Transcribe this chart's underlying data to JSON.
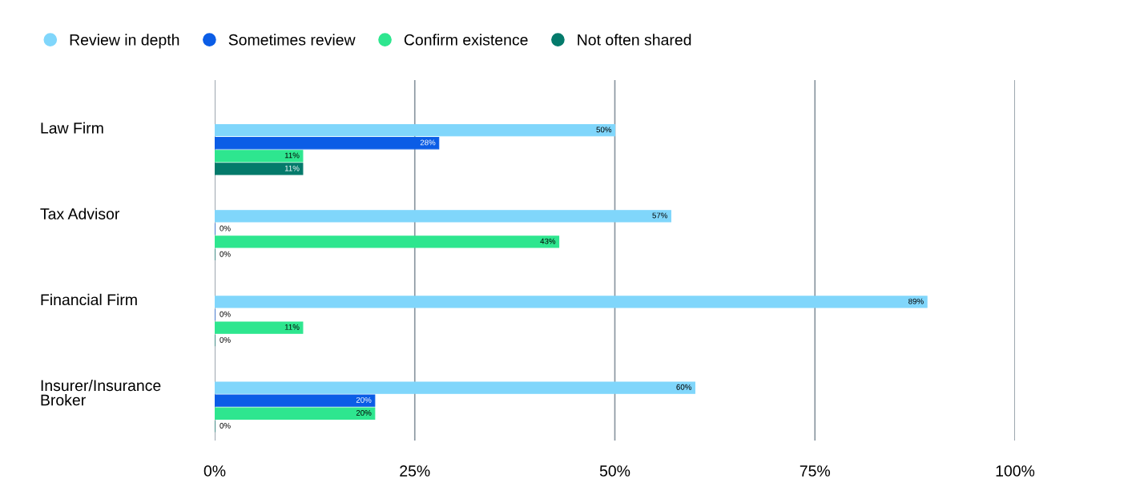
{
  "chart_data": {
    "type": "bar",
    "orientation": "horizontal",
    "categories": [
      "Law Firm",
      "Tax Advisor",
      "Financial Firm",
      "Insurer/Insurance Broker"
    ],
    "series": [
      {
        "name": "Review in depth",
        "color": "#80d6fb",
        "values": [
          50,
          57,
          89,
          60
        ],
        "value_labels": [
          "50%",
          "57%",
          "89%",
          "60%"
        ]
      },
      {
        "name": "Sometimes review",
        "color": "#0b5de6",
        "values": [
          28,
          0,
          0,
          20
        ],
        "value_labels": [
          "28%",
          "0%",
          "0%",
          "20%"
        ]
      },
      {
        "name": "Confirm existence",
        "color": "#2ee68f",
        "values": [
          11,
          43,
          11,
          20
        ],
        "value_labels": [
          "11%",
          "43%",
          "11%",
          "20%"
        ]
      },
      {
        "name": "Not often shared",
        "color": "#047a6b",
        "values": [
          11,
          0,
          0,
          0
        ],
        "value_labels": [
          "11%",
          "0%",
          "0%",
          "0%"
        ]
      }
    ],
    "xlim": [
      0,
      100
    ],
    "xticks": [
      {
        "value": 0,
        "label": "0%"
      },
      {
        "value": 25,
        "label": "25%"
      },
      {
        "value": 50,
        "label": "50%"
      },
      {
        "value": 75,
        "label": "75%"
      },
      {
        "value": 100,
        "label": "100%"
      }
    ],
    "grid": "x",
    "legend": "top left"
  }
}
